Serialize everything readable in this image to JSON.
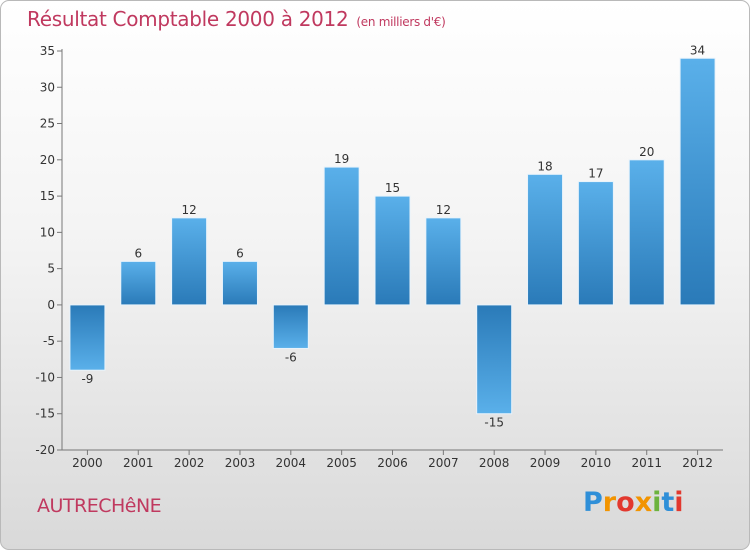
{
  "chart_data": {
    "type": "bar",
    "title": "Résultat Comptable 2000 à 2012",
    "subtitle": "(en milliers d'€)",
    "categories": [
      "2000",
      "2001",
      "2002",
      "2003",
      "2004",
      "2005",
      "2006",
      "2007",
      "2008",
      "2009",
      "2010",
      "2011",
      "2012"
    ],
    "values": [
      -9,
      6,
      12,
      6,
      -6,
      19,
      15,
      12,
      -15,
      18,
      17,
      20,
      34
    ],
    "ylim": [
      -20,
      35
    ],
    "yticks": [
      -20,
      -15,
      -10,
      -5,
      0,
      5,
      10,
      15,
      20,
      25,
      30,
      35
    ],
    "xlabel": "",
    "ylabel": "",
    "grid": false
  },
  "commune": "AUTRECHêNE",
  "logo": {
    "letters": [
      "P",
      "r",
      "o",
      "x",
      "i",
      "t",
      "i"
    ],
    "colors": [
      "#2f8fd8",
      "#f29400",
      "#e2382e",
      "#f29400",
      "#6cb33e",
      "#2f8fd8",
      "#e2382e"
    ]
  },
  "colors": {
    "accent": "#c0395f",
    "bar_dark": "#2a7ab8",
    "bar_light": "#5ab0ea"
  }
}
